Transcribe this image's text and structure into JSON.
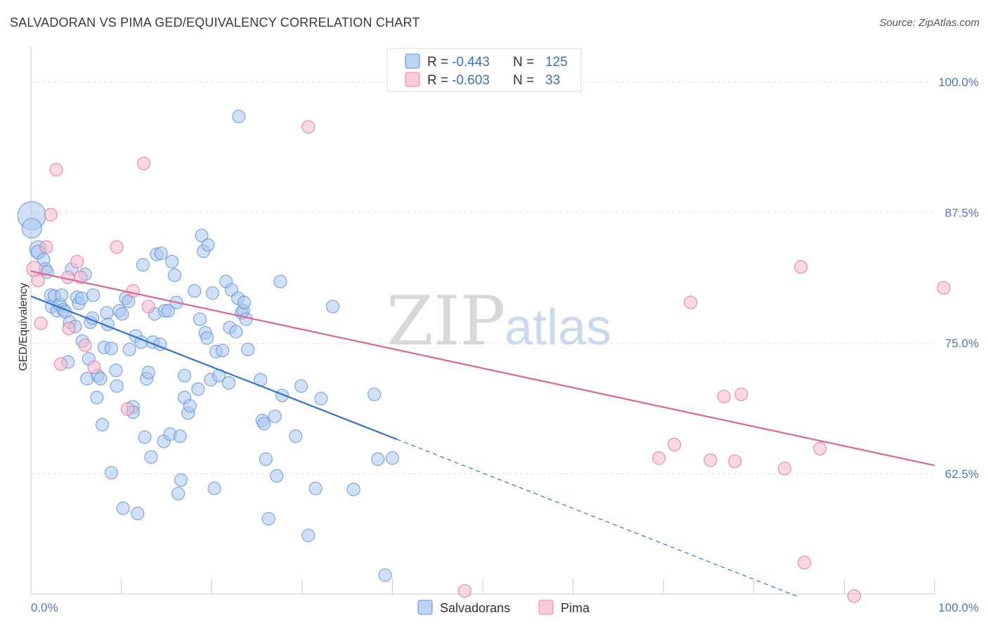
{
  "header": {
    "title": "SALVADORAN VS PIMA GED/EQUIVALENCY CORRELATION CHART",
    "source": "Source: ZipAtlas.com"
  },
  "legend": {
    "rows": [
      {
        "r_label": "R = ",
        "r_value": "-0.443",
        "n_label": "N = ",
        "n_value": "125",
        "color": "#a9c6ee"
      },
      {
        "r_label": "R = ",
        "r_value": "-0.603",
        "n_label": "N = ",
        "n_value": "33",
        "color": "#f6b9cb"
      }
    ]
  },
  "bottom_legend": [
    {
      "label": "Salvadorans",
      "color": "#a9c6ee"
    },
    {
      "label": "Pima",
      "color": "#f6b9cb"
    }
  ],
  "watermark": {
    "zip": "ZIP",
    "atlas": "atlas"
  },
  "chart_data": {
    "type": "scatter",
    "title": "SALVADORAN VS PIMA GED/EQUIVALENCY CORRELATION CHART",
    "xlabel": "",
    "ylabel": "GED/Equivalency",
    "xlim": [
      0,
      100
    ],
    "ylim": [
      51.0,
      103.0
    ],
    "x_tick_labels": [
      "0.0%",
      "100.0%"
    ],
    "y_ticks": [
      62.5,
      75.0,
      87.5,
      100.0
    ],
    "y_tick_labels": [
      "62.5%",
      "75.0%",
      "87.5%",
      "100.0%"
    ],
    "grid": true,
    "legend_placement": "top-center",
    "series": [
      {
        "name": "Salvadorans",
        "color": "#5b8fd6",
        "fill": "#a9c6ee",
        "trend": {
          "x": [
            0,
            40.5
          ],
          "y": [
            79.5,
            65.8
          ],
          "dashed_to": [
            85,
            50.7
          ]
        },
        "points": [
          [
            0.1,
            87.2,
            20
          ],
          [
            0.1,
            86.0,
            14
          ],
          [
            0.8,
            84.0,
            12
          ],
          [
            0.8,
            83.7,
            10
          ],
          [
            1.4,
            83.0,
            9
          ],
          [
            1.6,
            82.1,
            9
          ],
          [
            1.8,
            81.8,
            9
          ],
          [
            2.2,
            79.6,
            9
          ],
          [
            2.3,
            78.5,
            9
          ],
          [
            2.6,
            79.5,
            9
          ],
          [
            2.9,
            78.1,
            9
          ],
          [
            3.2,
            78.7,
            9
          ],
          [
            3.4,
            79.6,
            9
          ],
          [
            3.6,
            78.2,
            9
          ],
          [
            3.8,
            78.0,
            9
          ],
          [
            4.1,
            73.2,
            9
          ],
          [
            4.3,
            77.0,
            9
          ],
          [
            4.5,
            82.1,
            9
          ],
          [
            4.9,
            76.6,
            9
          ],
          [
            5.1,
            79.4,
            9
          ],
          [
            5.3,
            78.8,
            9
          ],
          [
            5.6,
            79.3,
            9
          ],
          [
            5.7,
            75.2,
            9
          ],
          [
            6.0,
            81.6,
            9
          ],
          [
            6.2,
            71.6,
            9
          ],
          [
            6.4,
            73.5,
            9
          ],
          [
            6.6,
            77.0,
            9
          ],
          [
            6.8,
            77.4,
            9
          ],
          [
            6.9,
            79.6,
            9
          ],
          [
            7.3,
            69.8,
            9
          ],
          [
            7.4,
            71.9,
            9
          ],
          [
            7.7,
            71.6,
            9
          ],
          [
            7.9,
            67.2,
            9
          ],
          [
            8.1,
            74.6,
            9
          ],
          [
            8.4,
            77.9,
            9
          ],
          [
            8.5,
            76.8,
            9
          ],
          [
            8.9,
            74.5,
            9
          ],
          [
            8.9,
            62.6,
            9
          ],
          [
            9.4,
            72.4,
            9
          ],
          [
            9.5,
            70.9,
            9
          ],
          [
            9.8,
            78.1,
            9
          ],
          [
            10.1,
            77.8,
            9
          ],
          [
            10.2,
            59.2,
            9
          ],
          [
            10.5,
            79.3,
            9
          ],
          [
            10.8,
            79.0,
            9
          ],
          [
            10.9,
            74.4,
            9
          ],
          [
            11.3,
            68.9,
            9
          ],
          [
            11.3,
            68.4,
            9
          ],
          [
            11.6,
            75.7,
            9
          ],
          [
            11.8,
            58.7,
            9
          ],
          [
            12.2,
            75.1,
            9
          ],
          [
            12.4,
            82.5,
            9
          ],
          [
            12.6,
            66.0,
            9
          ],
          [
            12.8,
            71.6,
            9
          ],
          [
            13.0,
            72.2,
            9
          ],
          [
            13.3,
            64.1,
            9
          ],
          [
            13.5,
            75.1,
            9
          ],
          [
            13.7,
            77.8,
            9
          ],
          [
            13.9,
            83.5,
            9
          ],
          [
            14.3,
            74.9,
            9
          ],
          [
            14.4,
            83.6,
            9
          ],
          [
            14.7,
            65.6,
            9
          ],
          [
            14.8,
            78.1,
            9
          ],
          [
            15.2,
            78.1,
            9
          ],
          [
            15.4,
            66.3,
            9
          ],
          [
            15.6,
            82.8,
            9
          ],
          [
            15.9,
            81.5,
            9
          ],
          [
            16.1,
            78.9,
            9
          ],
          [
            16.3,
            60.6,
            9
          ],
          [
            16.5,
            66.1,
            9
          ],
          [
            16.6,
            61.9,
            9
          ],
          [
            17.0,
            71.9,
            9
          ],
          [
            17.0,
            69.8,
            9
          ],
          [
            17.4,
            68.3,
            9
          ],
          [
            17.6,
            69.0,
            9
          ],
          [
            18.1,
            80.0,
            9
          ],
          [
            18.5,
            70.6,
            9
          ],
          [
            18.7,
            77.3,
            9
          ],
          [
            18.9,
            85.3,
            9
          ],
          [
            19.1,
            83.8,
            9
          ],
          [
            19.3,
            76.0,
            9
          ],
          [
            19.5,
            75.5,
            9
          ],
          [
            19.6,
            84.4,
            9
          ],
          [
            19.9,
            71.5,
            9
          ],
          [
            20.1,
            79.8,
            9
          ],
          [
            20.3,
            61.1,
            9
          ],
          [
            20.5,
            74.2,
            9
          ],
          [
            20.8,
            71.9,
            9
          ],
          [
            21.2,
            74.3,
            9
          ],
          [
            21.6,
            80.9,
            9
          ],
          [
            21.9,
            71.2,
            9
          ],
          [
            22.0,
            76.5,
            9
          ],
          [
            22.2,
            80.1,
            9
          ],
          [
            22.7,
            76.1,
            9
          ],
          [
            22.9,
            79.3,
            9
          ],
          [
            23.0,
            96.7,
            9
          ],
          [
            23.3,
            77.9,
            9
          ],
          [
            23.5,
            78.1,
            9
          ],
          [
            23.6,
            78.9,
            9
          ],
          [
            23.8,
            77.3,
            9
          ],
          [
            24.0,
            74.4,
            9
          ],
          [
            25.4,
            71.5,
            9
          ],
          [
            25.6,
            67.6,
            9
          ],
          [
            25.8,
            67.3,
            9
          ],
          [
            26.0,
            63.9,
            9
          ],
          [
            26.3,
            58.2,
            9
          ],
          [
            27.0,
            68.0,
            9
          ],
          [
            27.2,
            62.3,
            9
          ],
          [
            27.6,
            80.9,
            9
          ],
          [
            27.8,
            70.0,
            9
          ],
          [
            29.3,
            66.1,
            9
          ],
          [
            29.9,
            70.9,
            9
          ],
          [
            30.7,
            56.6,
            9
          ],
          [
            31.5,
            61.1,
            9
          ],
          [
            32.1,
            69.7,
            9
          ],
          [
            33.4,
            78.5,
            9
          ],
          [
            35.7,
            61.0,
            9
          ],
          [
            38.0,
            70.1,
            9
          ],
          [
            38.4,
            63.9,
            9
          ],
          [
            39.2,
            52.8,
            9
          ],
          [
            40.0,
            64.0,
            9
          ]
        ]
      },
      {
        "name": "Pima",
        "color": "#e06b95",
        "fill": "#f6b9cb",
        "trend": {
          "x": [
            0,
            100
          ],
          "y": [
            81.9,
            63.3
          ]
        },
        "points": [
          [
            0.4,
            82.1,
            11
          ],
          [
            0.8,
            81.0,
            9
          ],
          [
            1.1,
            76.9,
            9
          ],
          [
            1.7,
            84.2,
            9
          ],
          [
            2.2,
            87.3,
            9
          ],
          [
            2.8,
            91.6,
            9
          ],
          [
            3.3,
            73.0,
            9
          ],
          [
            4.1,
            81.3,
            9
          ],
          [
            4.2,
            76.4,
            9
          ],
          [
            5.1,
            82.8,
            9
          ],
          [
            5.5,
            81.3,
            9
          ],
          [
            6.0,
            74.8,
            9
          ],
          [
            7.0,
            72.7,
            9
          ],
          [
            9.5,
            84.2,
            9
          ],
          [
            10.7,
            68.7,
            9
          ],
          [
            11.3,
            80.0,
            9
          ],
          [
            12.5,
            92.2,
            9
          ],
          [
            13.0,
            78.5,
            9
          ],
          [
            30.7,
            95.7,
            9
          ],
          [
            48.0,
            51.3,
            9
          ],
          [
            69.5,
            64.0,
            9
          ],
          [
            71.2,
            65.3,
            9
          ],
          [
            73.0,
            78.9,
            9
          ],
          [
            75.2,
            63.8,
            9
          ],
          [
            76.7,
            69.9,
            9
          ],
          [
            77.9,
            63.7,
            9
          ],
          [
            78.6,
            70.1,
            9
          ],
          [
            83.4,
            63.0,
            9
          ],
          [
            85.2,
            82.3,
            9
          ],
          [
            85.6,
            54.0,
            9
          ],
          [
            87.3,
            64.9,
            9
          ],
          [
            91.1,
            50.8,
            9
          ],
          [
            101.0,
            80.3,
            9
          ]
        ]
      }
    ]
  }
}
